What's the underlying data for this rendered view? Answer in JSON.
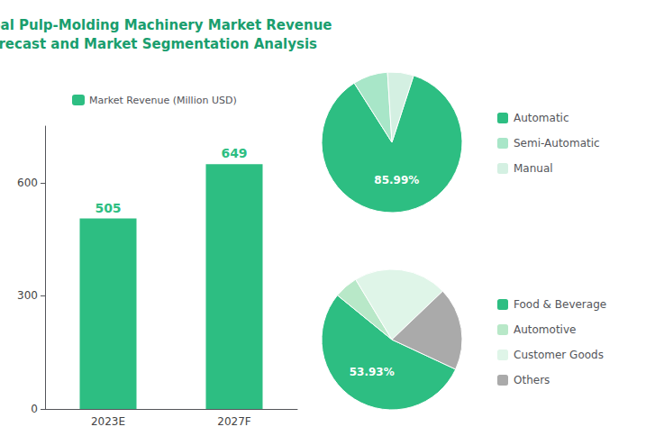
{
  "chart_data": [
    {
      "type": "bar",
      "title": "Global Pulp-Molding Machinery Market Revenue\nForecast and Market Segmentation Analysis",
      "categories": [
        "2023E",
        "2027F"
      ],
      "series": [
        {
          "name": "Market Revenue (Million USD)",
          "color": "#2dbe82",
          "values": [
            505,
            649
          ]
        }
      ],
      "ylim": [
        0,
        750
      ],
      "yticks": [
        0,
        300,
        600
      ],
      "grid": false,
      "data_labels": true,
      "legend": "top"
    },
    {
      "type": "pie",
      "categories": [
        "Automatic",
        "Semi-Automatic",
        "Manual"
      ],
      "values": [
        85.99,
        8.01,
        6.0
      ],
      "value_labels": [
        "85.99%",
        null,
        null
      ],
      "colors": [
        "#2dbe82",
        "#a8e6c8",
        "#d4f0e2"
      ],
      "legend": "right"
    },
    {
      "type": "pie",
      "categories": [
        "Food & Beverage",
        "Automotive",
        "Customer Goods",
        "Others"
      ],
      "values": [
        53.93,
        5.5,
        21.5,
        19.07
      ],
      "value_labels": [
        "53.93%",
        null,
        null,
        null
      ],
      "colors": [
        "#2dbe82",
        "#b8e8c8",
        "#dff5e8",
        "#aaaaaa"
      ],
      "legend": "right"
    }
  ]
}
